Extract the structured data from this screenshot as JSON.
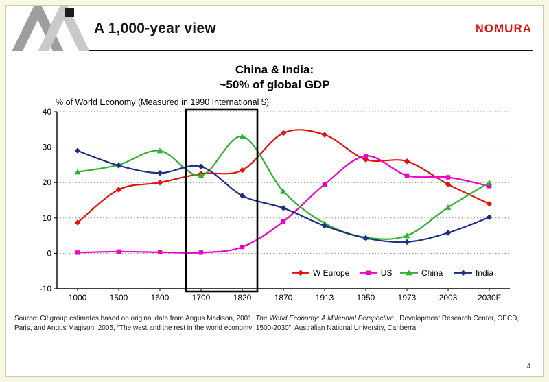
{
  "page": {
    "number": "4"
  },
  "header": {
    "title": "A 1,000-year view",
    "logo": "NOMURA",
    "logo_color": "#e3120b"
  },
  "annotation": {
    "line1": "China & India:",
    "line2": "~50% of global GDP"
  },
  "chart_data": {
    "type": "line",
    "title": "% of World Economy (Measured in 1990 International $)",
    "categories": [
      "1000",
      "1500",
      "1600",
      "1700",
      "1820",
      "1870",
      "1913",
      "1950",
      "1973",
      "2003",
      "2030F"
    ],
    "ylim": [
      -10,
      40
    ],
    "yticks": [
      40,
      30,
      20,
      10,
      0,
      -10
    ],
    "grid": "horizontal-dotted",
    "legend_position": "bottom-right-inside",
    "highlight_box": {
      "from_category": "1700",
      "to_category": "1820"
    },
    "series": [
      {
        "name": "W Europe",
        "color": "#e3120b",
        "marker": "diamond",
        "values": [
          8.7,
          18,
          20,
          22.5,
          23.5,
          34,
          33.5,
          26.5,
          26,
          19.5,
          14
        ]
      },
      {
        "name": "US",
        "color": "#ee00c8",
        "marker": "square",
        "values": [
          0.2,
          0.5,
          0.3,
          0.2,
          1.8,
          9,
          19.5,
          27.5,
          22,
          21.5,
          19
        ]
      },
      {
        "name": "China",
        "color": "#2fb32f",
        "marker": "triangle",
        "values": [
          23,
          25,
          29,
          22,
          33,
          17.5,
          8.5,
          4.5,
          5,
          13,
          20
        ]
      },
      {
        "name": "India",
        "color": "#1c2e85",
        "marker": "diamond",
        "values": [
          29,
          24.8,
          22.7,
          24.5,
          16.3,
          12.8,
          7.8,
          4.3,
          3.2,
          5.8,
          10.2
        ]
      }
    ]
  },
  "source": {
    "part1": "Source: Citigroup estimates based on original data from Angus Madison, 2001, ",
    "italic": "The World Economy: A Millennial Perspective",
    "part2": " , Development Research Center, OECD, Paris, and Angus Magison, 2005, “The west and the rest in the world economy: 1500-2030”, Australian National University, Canberra."
  }
}
